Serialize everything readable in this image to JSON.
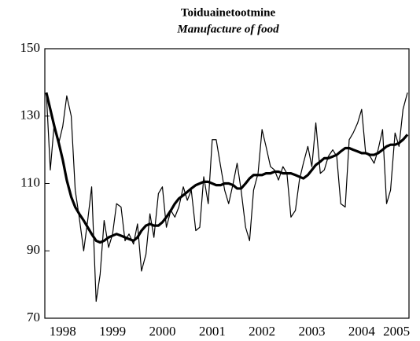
{
  "chart_data": {
    "type": "line",
    "title": "Toiduainetootmine",
    "subtitle": "Manufacture of food",
    "x": [
      1998.17,
      1998.25,
      1998.33,
      1998.42,
      1998.5,
      1998.58,
      1998.67,
      1998.75,
      1998.83,
      1998.92,
      1999.0,
      1999.08,
      1999.17,
      1999.25,
      1999.33,
      1999.42,
      1999.5,
      1999.58,
      1999.67,
      1999.75,
      1999.83,
      1999.92,
      2000.0,
      2000.08,
      2000.17,
      2000.25,
      2000.33,
      2000.42,
      2000.5,
      2000.58,
      2000.67,
      2000.75,
      2000.83,
      2000.92,
      2001.0,
      2001.08,
      2001.17,
      2001.25,
      2001.33,
      2001.42,
      2001.5,
      2001.58,
      2001.67,
      2001.75,
      2001.83,
      2001.92,
      2002.0,
      2002.08,
      2002.17,
      2002.25,
      2002.33,
      2002.42,
      2002.5,
      2002.58,
      2002.67,
      2002.75,
      2002.83,
      2002.92,
      2003.0,
      2003.08,
      2003.17,
      2003.25,
      2003.33,
      2003.42,
      2003.5,
      2003.58,
      2003.67,
      2003.75,
      2003.83,
      2003.92,
      2004.0,
      2004.08,
      2004.17,
      2004.25,
      2004.33,
      2004.42,
      2004.5,
      2004.58,
      2004.67,
      2004.75,
      2004.83,
      2004.92,
      2005.0,
      2005.08,
      2005.17,
      2005.25,
      2005.33,
      2005.42
    ],
    "series": [
      {
        "color": "#000000",
        "width": 1.2,
        "values": [
          137,
          114,
          128,
          122,
          127,
          136,
          130,
          108,
          100,
          90,
          99,
          109,
          75,
          83,
          99,
          91,
          95,
          104,
          103,
          93,
          95,
          92,
          98,
          84,
          89,
          101,
          94,
          107,
          109,
          97,
          102,
          100,
          103,
          109,
          105,
          108,
          96,
          97,
          112,
          104,
          123,
          123,
          115,
          108,
          104,
          110,
          116,
          108,
          97,
          93,
          108,
          113,
          126,
          121,
          115,
          114,
          111,
          115,
          113,
          100,
          102,
          111,
          116,
          121,
          115,
          128,
          113,
          114,
          118,
          120,
          118,
          104,
          103,
          123,
          125,
          128,
          132,
          119,
          118,
          116,
          120,
          126,
          104,
          108,
          125,
          121,
          132,
          137
        ]
      },
      {
        "color": "#000000",
        "width": 3.2,
        "values": [
          137,
          132,
          127,
          122,
          117,
          111,
          106,
          103,
          101,
          99,
          97,
          95,
          93,
          92.5,
          93,
          94,
          94.5,
          95,
          94.5,
          94,
          93.5,
          93,
          94,
          96,
          97.5,
          98,
          97.5,
          97.5,
          98.5,
          100,
          102,
          104,
          105.5,
          106.5,
          107.5,
          108.5,
          109.5,
          110,
          110.5,
          110.5,
          110,
          109.5,
          109.5,
          110,
          110,
          109.5,
          108.5,
          108.5,
          110,
          111.5,
          112.5,
          112.5,
          112.5,
          113,
          113,
          113.5,
          113.5,
          113,
          113,
          113,
          112.5,
          112,
          111.5,
          112.5,
          114,
          115.5,
          116.5,
          117.5,
          117.5,
          118,
          118.5,
          119.5,
          120.5,
          120.5,
          120,
          119.5,
          119,
          119,
          118.5,
          118.5,
          119,
          120,
          121,
          121.5,
          121.5,
          122,
          123,
          124.5
        ]
      }
    ],
    "xlim": [
      1998.14,
      2005.45
    ],
    "xticks": [
      {
        "value": 1998.5,
        "label": "1998"
      },
      {
        "value": 1999.5,
        "label": "1999"
      },
      {
        "value": 2000.5,
        "label": "2000"
      },
      {
        "value": 2001.5,
        "label": "2001"
      },
      {
        "value": 2002.5,
        "label": "2002"
      },
      {
        "value": 2003.5,
        "label": "2003"
      },
      {
        "value": 2004.5,
        "label": "2004"
      },
      {
        "value": 2005.2,
        "label": "2005"
      }
    ],
    "ylim": [
      70,
      150
    ],
    "yticks": [
      70,
      90,
      110,
      130,
      150
    ]
  }
}
